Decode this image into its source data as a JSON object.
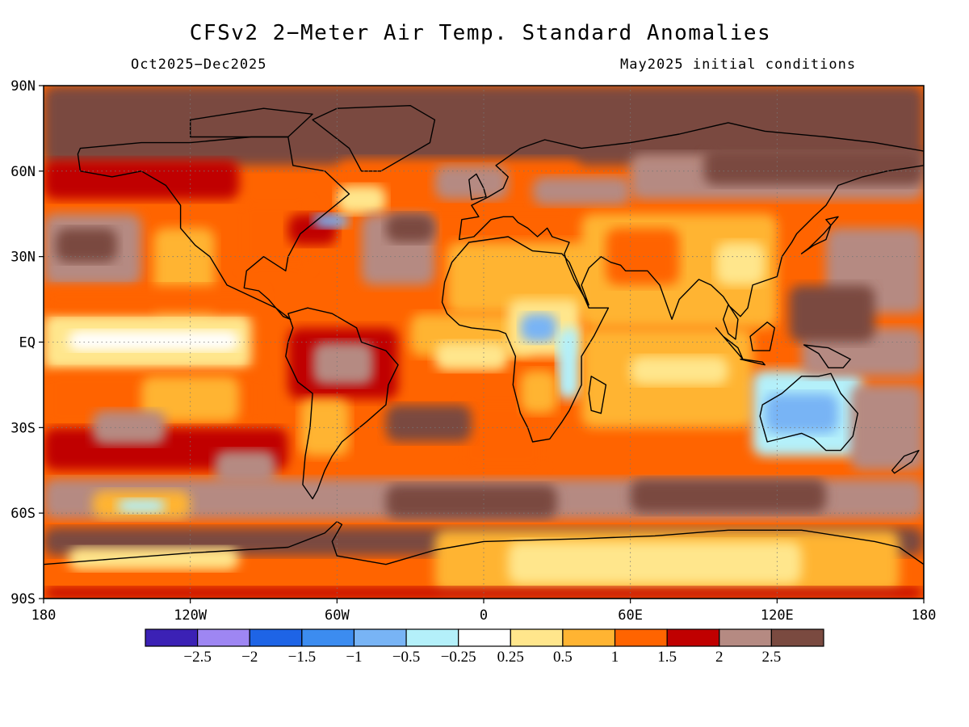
{
  "title": "CFSv2 2−Meter Air Temp. Standard Anomalies",
  "period": "Oct2025−Dec2025",
  "init": "May2025 initial conditions",
  "lat_labels": [
    "90N",
    "60N",
    "30N",
    "EQ",
    "30S",
    "60S",
    "90S"
  ],
  "lon_labels": [
    "180",
    "120W",
    "60W",
    "0",
    "60E",
    "120E",
    "180"
  ],
  "colorbar": {
    "colors": [
      "#3b21b5",
      "#9e86f3",
      "#1e64e6",
      "#3c8cf0",
      "#78b4f5",
      "#b4f0fa",
      "#ffffff",
      "#ffe68c",
      "#ffb432",
      "#ff6400",
      "#c00000",
      "#b58a82",
      "#7a4a40"
    ],
    "labels": [
      "−2.5",
      "−2",
      "−1.5",
      "−1",
      "−0.5",
      "−0.25",
      "0.25",
      "0.5",
      "1",
      "1.5",
      "2",
      "2.5"
    ]
  },
  "chart_data": {
    "type": "heatmap",
    "title": "CFSv2 2−Meter Air Temp. Standard Anomalies",
    "x_range": [
      -180,
      180
    ],
    "y_range": [
      -90,
      90
    ],
    "x_ticks": [
      "180",
      "120W",
      "60W",
      "0",
      "60E",
      "120E",
      "180"
    ],
    "y_ticks": [
      "90N",
      "60N",
      "30N",
      "EQ",
      "30S",
      "60S",
      "90S"
    ],
    "color_levels": [
      -2.5,
      -2,
      -1.5,
      -1,
      -0.5,
      -0.25,
      0.25,
      0.5,
      1,
      1.5,
      2,
      2.5
    ],
    "grid": true
  },
  "regions": [
    {
      "lon": [
        -180,
        180
      ],
      "lat": [
        -90,
        90
      ],
      "cat": 9
    },
    {
      "lon": [
        -180,
        180
      ],
      "lat": [
        62,
        90
      ],
      "cat": 12
    },
    {
      "lon": [
        -180,
        -100
      ],
      "lat": [
        50,
        64
      ],
      "cat": 10
    },
    {
      "lon": [
        -60,
        40
      ],
      "lat": [
        45,
        64
      ],
      "cat": 9
    },
    {
      "lon": [
        -20,
        10
      ],
      "lat": [
        50,
        62
      ],
      "cat": 11
    },
    {
      "lon": [
        20,
        60
      ],
      "lat": [
        48,
        58
      ],
      "cat": 11
    },
    {
      "lon": [
        60,
        180
      ],
      "lat": [
        50,
        66
      ],
      "cat": 11
    },
    {
      "lon": [
        90,
        180
      ],
      "lat": [
        55,
        68
      ],
      "cat": 12
    },
    {
      "lon": [
        -180,
        -140
      ],
      "lat": [
        20,
        45
      ],
      "cat": 11
    },
    {
      "lon": [
        -175,
        -150
      ],
      "lat": [
        28,
        40
      ],
      "cat": 12
    },
    {
      "lon": [
        -135,
        -110
      ],
      "lat": [
        8,
        40
      ],
      "cat": 8
    },
    {
      "lon": [
        -180,
        -95
      ],
      "lat": [
        -10,
        10
      ],
      "cat": 7
    },
    {
      "lon": [
        -170,
        -100
      ],
      "lat": [
        -3,
        4
      ],
      "cat": 6
    },
    {
      "lon": [
        -180,
        -90
      ],
      "lat": [
        10,
        20
      ],
      "cat": 9
    },
    {
      "lon": [
        -180,
        -90
      ],
      "lat": [
        -30,
        -10
      ],
      "cat": 9
    },
    {
      "lon": [
        -140,
        -100
      ],
      "lat": [
        -28,
        -12
      ],
      "cat": 8
    },
    {
      "lon": [
        -180,
        -80
      ],
      "lat": [
        -45,
        -30
      ],
      "cat": 10
    },
    {
      "lon": [
        -160,
        -130
      ],
      "lat": [
        -36,
        -24
      ],
      "cat": 11
    },
    {
      "lon": [
        -110,
        -85
      ],
      "lat": [
        -50,
        -38
      ],
      "cat": 11
    },
    {
      "lon": [
        -100,
        -70
      ],
      "lat": [
        25,
        50
      ],
      "cat": 9
    },
    {
      "lon": [
        -80,
        -60
      ],
      "lat": [
        34,
        45
      ],
      "cat": 10
    },
    {
      "lon": [
        -70,
        -55
      ],
      "lat": [
        40,
        45
      ],
      "cat": 4
    },
    {
      "lon": [
        -60,
        -40
      ],
      "lat": [
        45,
        55
      ],
      "cat": 7
    },
    {
      "lon": [
        -50,
        -20
      ],
      "lat": [
        20,
        45
      ],
      "cat": 11
    },
    {
      "lon": [
        -40,
        -20
      ],
      "lat": [
        35,
        45
      ],
      "cat": 12
    },
    {
      "lon": [
        -80,
        -35
      ],
      "lat": [
        -20,
        5
      ],
      "cat": 10
    },
    {
      "lon": [
        -70,
        -45
      ],
      "lat": [
        -15,
        0
      ],
      "cat": 11
    },
    {
      "lon": [
        -75,
        -55
      ],
      "lat": [
        -40,
        -20
      ],
      "cat": 8
    },
    {
      "lon": [
        -30,
        20
      ],
      "lat": [
        -5,
        10
      ],
      "cat": 8
    },
    {
      "lon": [
        -20,
        10
      ],
      "lat": [
        -10,
        0
      ],
      "cat": 7
    },
    {
      "lon": [
        -10,
        25
      ],
      "lat": [
        -45,
        -20
      ],
      "cat": 9
    },
    {
      "lon": [
        -40,
        -5
      ],
      "lat": [
        -35,
        -22
      ],
      "cat": 12
    },
    {
      "lon": [
        -15,
        50
      ],
      "lat": [
        10,
        35
      ],
      "cat": 8
    },
    {
      "lon": [
        10,
        40
      ],
      "lat": [
        -5,
        15
      ],
      "cat": 7
    },
    {
      "lon": [
        15,
        30
      ],
      "lat": [
        0,
        10
      ],
      "cat": 4
    },
    {
      "lon": [
        30,
        40
      ],
      "lat": [
        -20,
        5
      ],
      "cat": 5
    },
    {
      "lon": [
        15,
        30
      ],
      "lat": [
        -25,
        -10
      ],
      "cat": 8
    },
    {
      "lon": [
        40,
        120
      ],
      "lat": [
        5,
        45
      ],
      "cat": 8
    },
    {
      "lon": [
        50,
        80
      ],
      "lat": [
        20,
        40
      ],
      "cat": 9
    },
    {
      "lon": [
        95,
        115
      ],
      "lat": [
        20,
        35
      ],
      "cat": 7
    },
    {
      "lon": [
        40,
        110
      ],
      "lat": [
        -30,
        5
      ],
      "cat": 8
    },
    {
      "lon": [
        60,
        100
      ],
      "lat": [
        -15,
        -5
      ],
      "cat": 7
    },
    {
      "lon": [
        110,
        155
      ],
      "lat": [
        -40,
        -10
      ],
      "cat": 5
    },
    {
      "lon": [
        115,
        145
      ],
      "lat": [
        -32,
        -18
      ],
      "cat": 4
    },
    {
      "lon": [
        130,
        180
      ],
      "lat": [
        -12,
        5
      ],
      "cat": 11
    },
    {
      "lon": [
        150,
        180
      ],
      "lat": [
        -45,
        -15
      ],
      "cat": 11
    },
    {
      "lon": [
        140,
        180
      ],
      "lat": [
        10,
        40
      ],
      "cat": 11
    },
    {
      "lon": [
        125,
        160
      ],
      "lat": [
        0,
        20
      ],
      "cat": 12
    },
    {
      "lon": [
        -180,
        180
      ],
      "lat": [
        -62,
        -48
      ],
      "cat": 11
    },
    {
      "lon": [
        -40,
        30
      ],
      "lat": [
        -62,
        -50
      ],
      "cat": 12
    },
    {
      "lon": [
        60,
        140
      ],
      "lat": [
        -60,
        -48
      ],
      "cat": 12
    },
    {
      "lon": [
        -160,
        -120
      ],
      "lat": [
        -62,
        -52
      ],
      "cat": 8
    },
    {
      "lon": [
        -150,
        -130
      ],
      "lat": [
        -60,
        -55
      ],
      "cat": 5
    },
    {
      "lon": [
        -180,
        180
      ],
      "lat": [
        -75,
        -65
      ],
      "cat": 12
    },
    {
      "lon": [
        -20,
        170
      ],
      "lat": [
        -88,
        -66
      ],
      "cat": 8
    },
    {
      "lon": [
        10,
        130
      ],
      "lat": [
        -85,
        -70
      ],
      "cat": 7
    },
    {
      "lon": [
        -170,
        -100
      ],
      "lat": [
        -80,
        -72
      ],
      "cat": 7
    },
    {
      "lon": [
        -180,
        180
      ],
      "lat": [
        -90,
        -86
      ],
      "cat": 10
    }
  ],
  "continents": [
    [
      [
        -165,
        68
      ],
      [
        -140,
        70
      ],
      [
        -120,
        70
      ],
      [
        -95,
        72
      ],
      [
        -80,
        72
      ],
      [
        -78,
        62
      ],
      [
        -65,
        60
      ],
      [
        -55,
        52
      ],
      [
        -65,
        45
      ],
      [
        -75,
        38
      ],
      [
        -80,
        30
      ],
      [
        -81,
        25
      ],
      [
        -90,
        30
      ],
      [
        -97,
        25
      ],
      [
        -98,
        19
      ],
      [
        -92,
        18
      ],
      [
        -88,
        15
      ],
      [
        -82,
        9
      ],
      [
        -79,
        8
      ],
      [
        -85,
        12
      ],
      [
        -90,
        14
      ],
      [
        -105,
        20
      ],
      [
        -112,
        30
      ],
      [
        -118,
        34
      ],
      [
        -124,
        40
      ],
      [
        -124,
        48
      ],
      [
        -130,
        55
      ],
      [
        -140,
        60
      ],
      [
        -152,
        58
      ],
      [
        -165,
        60
      ],
      [
        -166,
        66
      ]
    ],
    [
      [
        -80,
        10
      ],
      [
        -72,
        12
      ],
      [
        -62,
        10
      ],
      [
        -52,
        5
      ],
      [
        -50,
        0
      ],
      [
        -40,
        -3
      ],
      [
        -35,
        -8
      ],
      [
        -39,
        -15
      ],
      [
        -40,
        -22
      ],
      [
        -48,
        -28
      ],
      [
        -58,
        -35
      ],
      [
        -62,
        -40
      ],
      [
        -65,
        -45
      ],
      [
        -68,
        -52
      ],
      [
        -70,
        -55
      ],
      [
        -74,
        -50
      ],
      [
        -73,
        -40
      ],
      [
        -71,
        -30
      ],
      [
        -70,
        -18
      ],
      [
        -76,
        -14
      ],
      [
        -81,
        -5
      ],
      [
        -80,
        0
      ],
      [
        -78,
        5
      ]
    ],
    [
      [
        -17,
        14
      ],
      [
        -16,
        21
      ],
      [
        -13,
        28
      ],
      [
        -6,
        35
      ],
      [
        10,
        37
      ],
      [
        20,
        32
      ],
      [
        32,
        31
      ],
      [
        35,
        28
      ],
      [
        43,
        12
      ],
      [
        51,
        12
      ],
      [
        45,
        2
      ],
      [
        40,
        -5
      ],
      [
        40,
        -15
      ],
      [
        35,
        -24
      ],
      [
        32,
        -28
      ],
      [
        27,
        -34
      ],
      [
        20,
        -35
      ],
      [
        18,
        -30
      ],
      [
        15,
        -25
      ],
      [
        12,
        -15
      ],
      [
        13,
        -5
      ],
      [
        9,
        3
      ],
      [
        6,
        4
      ],
      [
        -5,
        5
      ],
      [
        -10,
        6
      ],
      [
        -15,
        10
      ]
    ],
    [
      [
        -10,
        36
      ],
      [
        -9,
        43
      ],
      [
        -2,
        44
      ],
      [
        -5,
        48
      ],
      [
        2,
        51
      ],
      [
        8,
        54
      ],
      [
        10,
        58
      ],
      [
        5,
        62
      ],
      [
        15,
        68
      ],
      [
        25,
        71
      ],
      [
        40,
        68
      ],
      [
        60,
        70
      ],
      [
        80,
        73
      ],
      [
        100,
        77
      ],
      [
        115,
        74
      ],
      [
        140,
        72
      ],
      [
        160,
        70
      ],
      [
        180,
        67
      ],
      [
        180,
        62
      ],
      [
        165,
        60
      ],
      [
        155,
        58
      ],
      [
        145,
        55
      ],
      [
        140,
        48
      ],
      [
        135,
        44
      ],
      [
        128,
        38
      ],
      [
        126,
        35
      ],
      [
        122,
        30
      ],
      [
        120,
        23
      ],
      [
        110,
        20
      ],
      [
        108,
        12
      ],
      [
        105,
        9
      ],
      [
        100,
        13
      ],
      [
        98,
        8
      ],
      [
        100,
        3
      ],
      [
        103,
        1
      ],
      [
        104,
        8
      ],
      [
        98,
        16
      ],
      [
        93,
        20
      ],
      [
        88,
        22
      ],
      [
        80,
        15
      ],
      [
        77,
        8
      ],
      [
        72,
        20
      ],
      [
        67,
        25
      ],
      [
        58,
        25
      ],
      [
        56,
        27
      ],
      [
        52,
        28
      ],
      [
        48,
        30
      ],
      [
        43,
        26
      ],
      [
        40,
        20
      ],
      [
        43,
        13
      ],
      [
        37,
        22
      ],
      [
        34,
        28
      ],
      [
        33,
        31
      ],
      [
        35,
        35
      ],
      [
        28,
        37
      ],
      [
        26,
        40
      ],
      [
        22,
        37
      ],
      [
        18,
        40
      ],
      [
        14,
        42
      ],
      [
        12,
        44
      ],
      [
        8,
        44
      ],
      [
        3,
        43
      ],
      [
        -4,
        37
      ]
    ],
    [
      [
        114,
        -22
      ],
      [
        122,
        -18
      ],
      [
        130,
        -12
      ],
      [
        137,
        -12
      ],
      [
        142,
        -11
      ],
      [
        146,
        -18
      ],
      [
        153,
        -25
      ],
      [
        151,
        -33
      ],
      [
        146,
        -38
      ],
      [
        140,
        -38
      ],
      [
        135,
        -34
      ],
      [
        130,
        -32
      ],
      [
        116,
        -35
      ],
      [
        113,
        -26
      ]
    ],
    [
      [
        -180,
        -78
      ],
      [
        -150,
        -76
      ],
      [
        -120,
        -74
      ],
      [
        -100,
        -73
      ],
      [
        -80,
        -72
      ],
      [
        -65,
        -67
      ],
      [
        -60,
        -63
      ],
      [
        -58,
        -64
      ],
      [
        -62,
        -70
      ],
      [
        -60,
        -75
      ],
      [
        -40,
        -78
      ],
      [
        -20,
        -73
      ],
      [
        0,
        -70
      ],
      [
        40,
        -69
      ],
      [
        70,
        -68
      ],
      [
        100,
        -66
      ],
      [
        130,
        -66
      ],
      [
        160,
        -70
      ],
      [
        170,
        -72
      ],
      [
        180,
        -78
      ],
      [
        180,
        -90
      ],
      [
        -180,
        -90
      ]
    ],
    [
      [
        -50,
        60
      ],
      [
        -42,
        60
      ],
      [
        -22,
        70
      ],
      [
        -20,
        78
      ],
      [
        -30,
        83
      ],
      [
        -60,
        82
      ],
      [
        -70,
        78
      ],
      [
        -55,
        68
      ]
    ],
    [
      [
        -5,
        50
      ],
      [
        1,
        51
      ],
      [
        0,
        54
      ],
      [
        -3,
        59
      ],
      [
        -6,
        57
      ]
    ],
    [
      [
        130,
        31
      ],
      [
        135,
        34
      ],
      [
        140,
        36
      ],
      [
        142,
        41
      ],
      [
        140,
        43
      ],
      [
        145,
        44
      ],
      [
        139,
        38
      ],
      [
        133,
        33
      ]
    ],
    [
      [
        95,
        5
      ],
      [
        100,
        0
      ],
      [
        106,
        -6
      ],
      [
        104,
        -2
      ],
      [
        98,
        2
      ]
    ],
    [
      [
        105,
        -6
      ],
      [
        115,
        -8
      ],
      [
        114,
        -7
      ],
      [
        106,
        -6
      ]
    ],
    [
      [
        109,
        2
      ],
      [
        116,
        7
      ],
      [
        119,
        5
      ],
      [
        117,
        -3
      ],
      [
        110,
        -3
      ]
    ],
    [
      [
        131,
        -1
      ],
      [
        141,
        -2
      ],
      [
        150,
        -6
      ],
      [
        147,
        -9
      ],
      [
        141,
        -9
      ],
      [
        137,
        -4
      ]
    ],
    [
      [
        172,
        -40
      ],
      [
        178,
        -38
      ],
      [
        175,
        -42
      ],
      [
        168,
        -46
      ],
      [
        167,
        -45
      ]
    ],
    [
      [
        44,
        -12
      ],
      [
        50,
        -15
      ],
      [
        48,
        -25
      ],
      [
        44,
        -24
      ],
      [
        43,
        -18
      ]
    ],
    [
      [
        -120,
        72
      ],
      [
        -80,
        72
      ],
      [
        -70,
        80
      ],
      [
        -90,
        82
      ],
      [
        -120,
        78
      ]
    ]
  ]
}
